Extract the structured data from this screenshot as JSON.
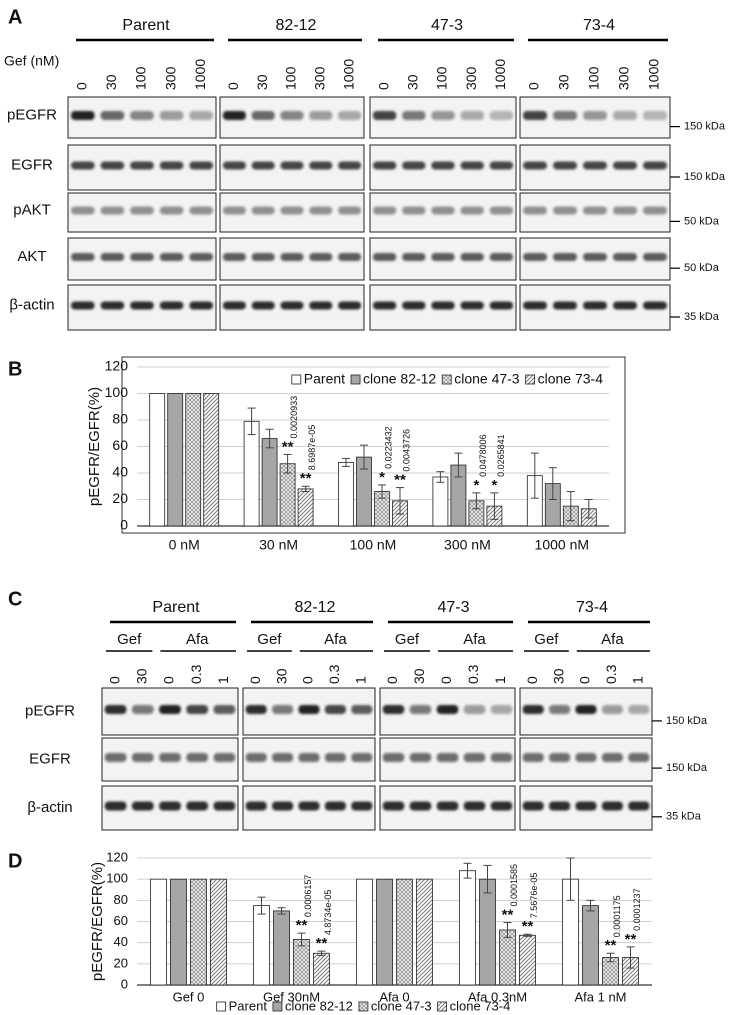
{
  "panel_letters": [
    "A",
    "B",
    "C",
    "D"
  ],
  "panel_a": {
    "groups": [
      "Parent",
      "82-12",
      "47-3",
      "73-4"
    ],
    "dose_title": "Gef (nM)",
    "doses": [
      "0",
      "30",
      "100",
      "300",
      "1000"
    ],
    "rows": [
      "pEGFR",
      "EGFR",
      "pAKT",
      "AKT",
      "β-actin"
    ],
    "markers": [
      "150 kDa",
      "150 kDa",
      "50 kDa",
      "50 kDa",
      "35 kDa"
    ]
  },
  "panel_c": {
    "groups": [
      "Parent",
      "82-12",
      "47-3",
      "73-4"
    ],
    "drugs": [
      "Gef",
      "Afa"
    ],
    "gef_doses": [
      "0",
      "30"
    ],
    "afa_doses": [
      "0",
      "0.3",
      "1"
    ],
    "rows": [
      "pEGFR",
      "EGFR",
      "β-actin"
    ],
    "markers": [
      "150 kDa",
      "150 kDa",
      "35 kDa"
    ]
  },
  "chart_data": [
    {
      "type": "bar",
      "y_label": "pEGFR/EGFR(%)",
      "categories": [
        "0 nM",
        "30 nM",
        "100 nM",
        "300 nM",
        "1000 nM"
      ],
      "ylim": [
        0,
        120
      ],
      "yticks": [
        0,
        20,
        40,
        60,
        80,
        100,
        120
      ],
      "grid": true,
      "legend": "top",
      "series": [
        {
          "name": "Parent",
          "color": "#ffffff",
          "pattern": "none",
          "values": [
            100,
            79,
            48,
            37,
            38
          ],
          "errors": [
            null,
            10,
            3,
            4,
            17
          ]
        },
        {
          "name": "clone 82-12",
          "color": "#a6a6a6",
          "pattern": "none",
          "values": [
            100,
            66,
            52,
            46,
            32
          ],
          "errors": [
            null,
            7,
            9,
            9,
            12
          ]
        },
        {
          "name": "clone 47-3",
          "color": "#8c8c8c",
          "pattern": "cross",
          "values": [
            100,
            47,
            26,
            19,
            15
          ],
          "errors": [
            null,
            7,
            5,
            6,
            11
          ],
          "sig_labels": [
            null,
            "**",
            "*",
            "*",
            null
          ],
          "p_labels": [
            null,
            "0.0020933",
            "0.0223432",
            "0.0478006",
            null
          ]
        },
        {
          "name": "clone 73-4",
          "color": "#ffffff",
          "pattern": "diagonal",
          "values": [
            100,
            28,
            19,
            15,
            13
          ],
          "errors": [
            null,
            2,
            10,
            10,
            7
          ],
          "sig_labels": [
            null,
            "**",
            "**",
            "*",
            null
          ],
          "p_labels": [
            null,
            "8.6987e-05",
            "0.0043726",
            "0.0265841",
            null
          ]
        }
      ]
    },
    {
      "type": "bar",
      "y_label": "pEGFR/EGFR(%)",
      "categories": [
        "Gef 0",
        "Gef 30nM",
        "Afa 0",
        "Afa 0.3nM",
        "Afa 1 nM"
      ],
      "ylim": [
        0,
        120
      ],
      "yticks": [
        0,
        20,
        40,
        60,
        80,
        100,
        120
      ],
      "grid": true,
      "legend": "bottom",
      "series": [
        {
          "name": "Parent",
          "color": "#ffffff",
          "pattern": "none",
          "values": [
            100,
            75,
            100,
            108,
            100
          ],
          "errors": [
            null,
            8,
            null,
            7,
            20
          ]
        },
        {
          "name": "clone 82-12",
          "color": "#a6a6a6",
          "pattern": "none",
          "values": [
            100,
            70,
            100,
            100,
            75
          ],
          "errors": [
            null,
            3,
            null,
            13,
            5
          ]
        },
        {
          "name": "clone 47-3",
          "color": "#8c8c8c",
          "pattern": "cross",
          "values": [
            100,
            43,
            100,
            52,
            26
          ],
          "errors": [
            null,
            6,
            null,
            7,
            4
          ],
          "sig_labels": [
            null,
            "**",
            null,
            "**",
            "**"
          ],
          "p_labels": [
            null,
            "0.0006157",
            null,
            "0.0001585",
            "0.0001175"
          ]
        },
        {
          "name": "clone 73-4",
          "color": "#ffffff",
          "pattern": "diagonal",
          "values": [
            100,
            30,
            100,
            47,
            26
          ],
          "errors": [
            null,
            2,
            null,
            1,
            10
          ],
          "sig_labels": [
            null,
            "**",
            null,
            "**",
            "**"
          ],
          "p_labels": [
            null,
            "4.8734e-05",
            null,
            "7.5676e-05",
            "0.0001237"
          ]
        }
      ]
    }
  ]
}
